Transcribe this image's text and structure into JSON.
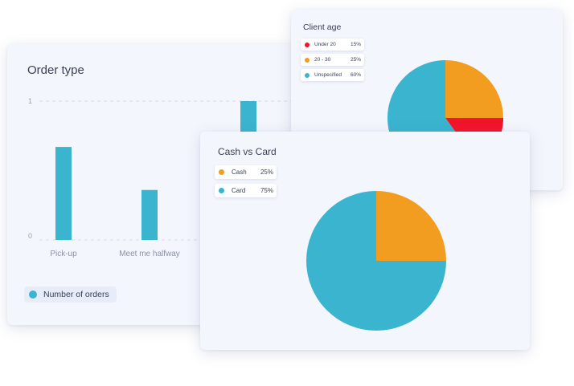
{
  "colors": {
    "teal": "#3ab4cf",
    "orange": "#f29d1f",
    "red": "#f2142b",
    "card_bg": "#f4f6fd"
  },
  "chart_data": [
    {
      "type": "bar",
      "title": "Order type",
      "categories": [
        "Pick-up",
        "Meet me halfway",
        ""
      ],
      "series": [
        {
          "name": "Number of orders",
          "values": [
            0.67,
            0.36,
            1
          ],
          "color": "#3ab4cf"
        }
      ],
      "ylim": [
        0,
        1
      ],
      "yticks": [
        "0",
        "1"
      ],
      "grid": true,
      "legend": "bottom-left"
    },
    {
      "type": "pie",
      "title": "Client age",
      "slices": [
        {
          "label": "Under 20",
          "pct_label": "15%",
          "value": 15,
          "color": "#f2142b"
        },
        {
          "label": "20 - 30",
          "pct_label": "25%",
          "value": 25,
          "color": "#f29d1f"
        },
        {
          "label": "Unspecified",
          "pct_label": "60%",
          "value": 60,
          "color": "#3ab4cf"
        }
      ],
      "legend": "top-left"
    },
    {
      "type": "pie",
      "title": "Cash vs Card",
      "slices": [
        {
          "label": "Cash",
          "pct_label": "25%",
          "value": 25,
          "color": "#f29d1f"
        },
        {
          "label": "Card",
          "pct_label": "75%",
          "value": 75,
          "color": "#3ab4cf"
        }
      ],
      "legend": "top-left"
    }
  ]
}
